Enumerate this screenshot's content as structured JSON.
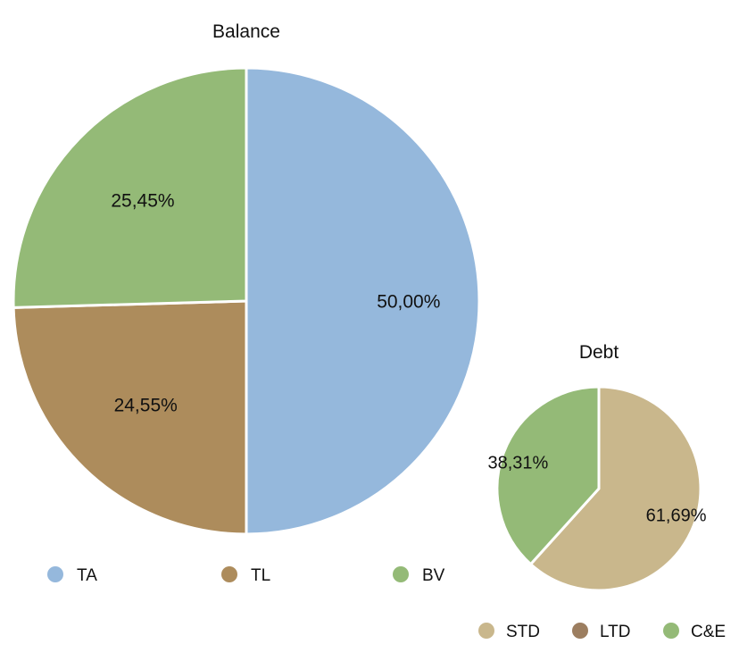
{
  "chart_data": [
    {
      "type": "pie",
      "title": "Balance",
      "categories": [
        "TA",
        "TL",
        "BV"
      ],
      "values": [
        50.0,
        24.55,
        25.45
      ],
      "data_labels": [
        "50,00%",
        "24,55%",
        "25,45%"
      ],
      "colors": [
        "#95b8dc",
        "#ad8c5c",
        "#94ba77"
      ],
      "legend": {
        "position": "bottom",
        "entries": [
          {
            "label": "TA",
            "color": "#95b8dc"
          },
          {
            "label": "TL",
            "color": "#ad8c5c"
          },
          {
            "label": "BV",
            "color": "#94ba77"
          }
        ]
      }
    },
    {
      "type": "pie",
      "title": "Debt",
      "categories": [
        "STD",
        "C&E"
      ],
      "values": [
        61.69,
        38.31
      ],
      "data_labels": [
        "61,69%",
        "38,31%"
      ],
      "colors": [
        "#c9b78c",
        "#94ba77"
      ],
      "legend": {
        "position": "bottom",
        "entries": [
          {
            "label": "STD",
            "color": "#c9b78c"
          },
          {
            "label": "LTD",
            "color": "#9c7e60"
          },
          {
            "label": "C&E",
            "color": "#94ba77"
          }
        ]
      }
    }
  ]
}
